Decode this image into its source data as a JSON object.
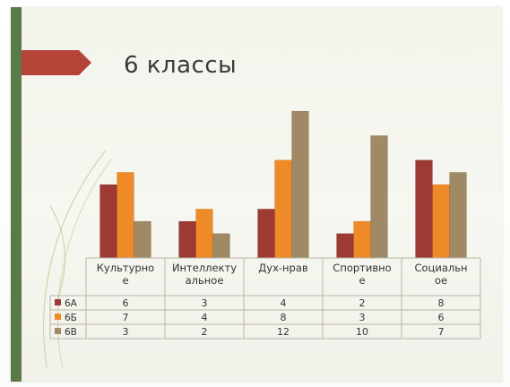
{
  "slide": {
    "title": "6 классы"
  },
  "colors": {
    "accent_bar": "#5a7a49",
    "title_tab": "#b44338",
    "series": [
      "#9c3a33",
      "#ef8a28",
      "#a08a66"
    ]
  },
  "chart_data": {
    "type": "bar",
    "categories": [
      [
        "Культурно",
        "е"
      ],
      [
        "Интеллекту",
        "альное"
      ],
      [
        "Дух-нрав"
      ],
      [
        "Спортивно",
        "е"
      ],
      [
        "Социальн",
        "ое"
      ]
    ],
    "series": [
      {
        "name": "6А",
        "values": [
          6,
          3,
          4,
          2,
          8
        ]
      },
      {
        "name": "6Б",
        "values": [
          7,
          4,
          8,
          3,
          6
        ]
      },
      {
        "name": "6В",
        "values": [
          3,
          2,
          12,
          10,
          7
        ]
      }
    ],
    "ylim": [
      0,
      12
    ],
    "legend": "data-table-left",
    "grid": false
  }
}
